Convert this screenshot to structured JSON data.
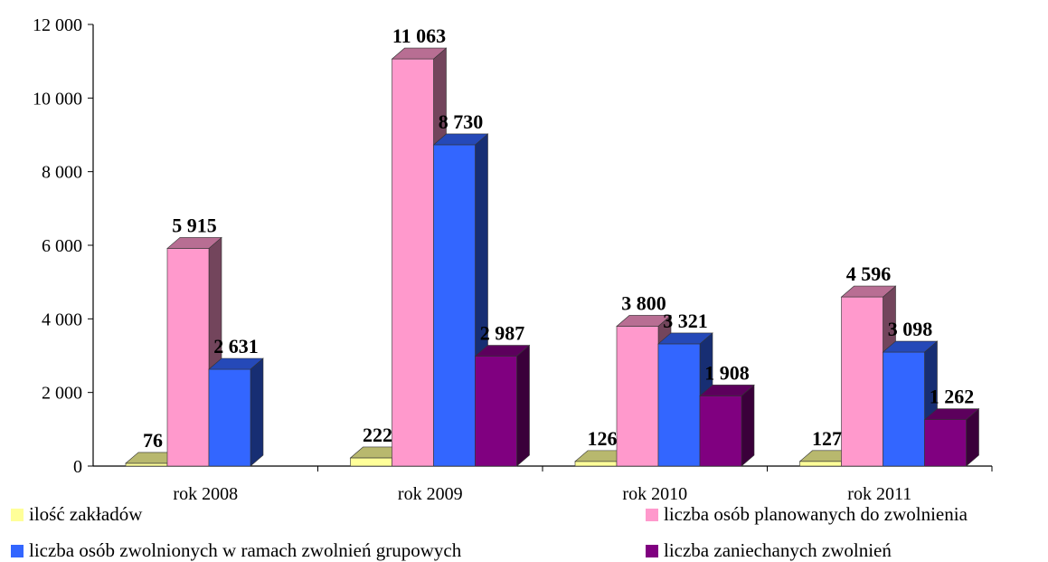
{
  "chart_data": {
    "type": "bar",
    "title": "",
    "xlabel": "",
    "ylabel": "",
    "categories": [
      "rok 2008",
      "rok 2009",
      "rok 2010",
      "rok 2011"
    ],
    "ylim": [
      0,
      12000
    ],
    "yticks": [
      0,
      2000,
      4000,
      6000,
      8000,
      10000,
      12000
    ],
    "ytick_labels": [
      "0",
      "2 000",
      "4 000",
      "6 000",
      "8 000",
      "10 000",
      "12 000"
    ],
    "grid": false,
    "legend_position": "bottom",
    "style": "3d-column",
    "series": [
      {
        "name": "ilość zakładów",
        "values": [
          76,
          222,
          126,
          127
        ],
        "labels": [
          "76",
          "222",
          "126",
          "127"
        ],
        "color": "#FFFF99"
      },
      {
        "name": "liczba osób planowanych do zwolnienia",
        "values": [
          5915,
          11063,
          3800,
          4596
        ],
        "labels": [
          "5 915",
          "11 063",
          "3 800",
          "4 596"
        ],
        "color": "#FF99CC"
      },
      {
        "name": "liczba osób zwolnionych w ramach zwolnień grupowych",
        "values": [
          2631,
          8730,
          3321,
          3098
        ],
        "labels": [
          "2 631",
          "8 730",
          "3 321",
          "3 098"
        ],
        "color": "#3366FF"
      },
      {
        "name": "liczba zaniechanych zwolnień",
        "values": [
          null,
          2987,
          1908,
          1262
        ],
        "labels": [
          "",
          "2 987",
          "1 908",
          "1 262"
        ],
        "color": "#800080"
      }
    ]
  }
}
